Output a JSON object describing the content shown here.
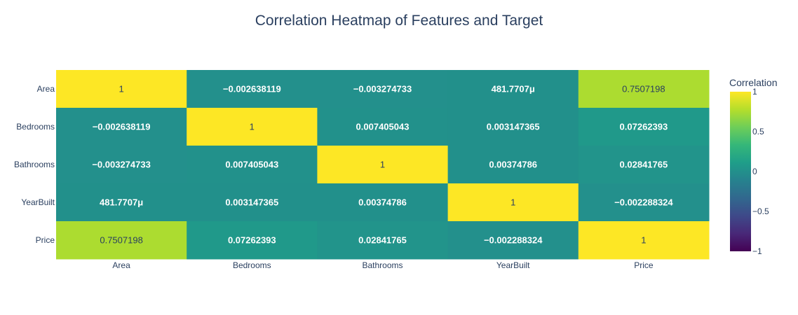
{
  "chart_data": {
    "type": "heatmap",
    "title": "Correlation Heatmap of Features and Target",
    "x_categories": [
      "Area",
      "Bedrooms",
      "Bathrooms",
      "YearBuilt",
      "Price"
    ],
    "y_categories": [
      "Area",
      "Bedrooms",
      "Bathrooms",
      "YearBuilt",
      "Price"
    ],
    "values": [
      [
        1,
        -0.002638119,
        -0.003274733,
        0.0004817707,
        0.7507198
      ],
      [
        -0.002638119,
        1,
        0.007405043,
        0.003147365,
        0.07262393
      ],
      [
        -0.003274733,
        0.007405043,
        1,
        0.00374786,
        0.02841765
      ],
      [
        0.0004817707,
        0.003147365,
        0.00374786,
        1,
        -0.002288324
      ],
      [
        0.7507198,
        0.07262393,
        0.02841765,
        -0.002288324,
        1
      ]
    ],
    "text": [
      [
        "1",
        "−0.002638119",
        "−0.003274733",
        "481.7707μ",
        "0.7507198"
      ],
      [
        "−0.002638119",
        "1",
        "0.007405043",
        "0.003147365",
        "0.07262393"
      ],
      [
        "−0.003274733",
        "0.007405043",
        "1",
        "0.00374786",
        "0.02841765"
      ],
      [
        "481.7707μ",
        "0.003147365",
        "0.00374786",
        "1",
        "−0.002288324"
      ],
      [
        "0.7507198",
        "0.07262393",
        "0.02841765",
        "−0.002288324",
        "1"
      ]
    ],
    "colorscale": "Viridis",
    "zmin": -1,
    "zmax": 1,
    "colorbar": {
      "title": "Correlation",
      "ticks": [
        1,
        0.5,
        0,
        -0.5,
        -1
      ],
      "tick_labels": [
        "1",
        "0.5",
        "0",
        "−0.5",
        "−1"
      ]
    },
    "colors": {
      "text_dark": "#2a3f5f",
      "text_light": "#ffffff"
    }
  }
}
